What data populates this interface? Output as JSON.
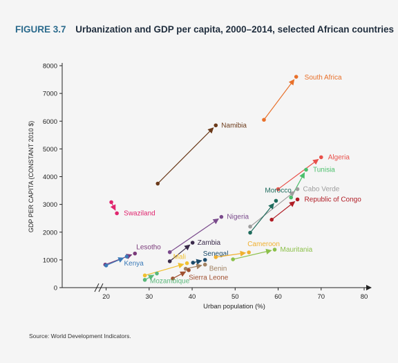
{
  "figure": {
    "number": "FIGURE 3.7",
    "title": "Urbanization and GDP per capita, 2000–2014, selected African countries",
    "source": "Source: World Development Indicators."
  },
  "chart_data": {
    "type": "scatter",
    "subtype": "arrow-scatter",
    "xlabel": "Urban population (%)",
    "ylabel": "GDP PER CAPITA (CONSTANT 2010 $)",
    "xlim": [
      10,
      80
    ],
    "ylim": [
      0,
      8000
    ],
    "xticks": [
      20,
      30,
      40,
      50,
      60,
      70,
      80
    ],
    "yticks": [
      0,
      1000,
      2000,
      3000,
      4000,
      5000,
      6000,
      7000,
      8000
    ],
    "axis_break_x": true,
    "grid": false,
    "legend": "none",
    "series": [
      {
        "name": "South Africa",
        "color": "#e8702a",
        "start": [
          56.7,
          6050
        ],
        "end": [
          64.2,
          7600
        ]
      },
      {
        "name": "Namibia",
        "color": "#6b3a1a",
        "start": [
          32.0,
          3750
        ],
        "end": [
          45.5,
          5850
        ]
      },
      {
        "name": "Algeria",
        "color": "#e8504a",
        "start": [
          60.0,
          3550
        ],
        "end": [
          70.0,
          4700
        ]
      },
      {
        "name": "Tunisia",
        "color": "#4bbf6b",
        "start": [
          63.0,
          3250
        ],
        "end": [
          66.5,
          4250
        ]
      },
      {
        "name": "Cabo Verde",
        "color": "#9e9e9e",
        "start": [
          53.5,
          2200
        ],
        "end": [
          64.5,
          3550
        ]
      },
      {
        "name": "Morocco",
        "color": "#1e6b5c",
        "start": [
          53.5,
          1980
        ],
        "end": [
          59.5,
          3130
        ]
      },
      {
        "name": "Republic of Congo",
        "color": "#b01c24",
        "start": [
          58.5,
          2450
        ],
        "end": [
          64.5,
          3180
        ]
      },
      {
        "name": "Swaziland",
        "color": "#e0256e",
        "start": [
          21.2,
          3080
        ],
        "end": [
          22.5,
          2680
        ]
      },
      {
        "name": "Nigeria",
        "color": "#7a4a8c",
        "start": [
          34.8,
          1280
        ],
        "end": [
          46.8,
          2550
        ]
      },
      {
        "name": "Zambia",
        "color": "#3a2a4a",
        "start": [
          34.8,
          950
        ],
        "end": [
          40.1,
          1620
        ]
      },
      {
        "name": "Lesotho",
        "color": "#7a3a7a",
        "start": [
          19.8,
          830
        ],
        "end": [
          26.7,
          1230
        ]
      },
      {
        "name": "Kenya",
        "color": "#3a7ab8",
        "start": [
          20.0,
          800
        ],
        "end": [
          24.8,
          1120
        ]
      },
      {
        "name": "Senegal",
        "color": "#1a4a6a",
        "start": [
          40.2,
          900
        ],
        "end": [
          43.0,
          1000
        ]
      },
      {
        "name": "Cameroon",
        "color": "#f0b030",
        "start": [
          45.5,
          1100
        ],
        "end": [
          53.2,
          1270
        ]
      },
      {
        "name": "Mauritania",
        "color": "#8cc04a",
        "start": [
          49.5,
          1020
        ],
        "end": [
          59.2,
          1370
        ]
      },
      {
        "name": "Mali",
        "color": "#f0c030",
        "start": [
          29.0,
          440
        ],
        "end": [
          38.8,
          880
        ]
      },
      {
        "name": "Benin",
        "color": "#a08060",
        "start": [
          38.5,
          680
        ],
        "end": [
          43.0,
          830
        ]
      },
      {
        "name": "Sierra Leone",
        "color": "#a05030",
        "start": [
          35.5,
          330
        ],
        "end": [
          39.2,
          630
        ]
      },
      {
        "name": "Mozambique",
        "color": "#5ab87a",
        "start": [
          29.0,
          280
        ],
        "end": [
          31.8,
          510
        ]
      }
    ]
  },
  "label_text": [
    "South Africa",
    "Namibia",
    "Algeria",
    "Tunisia",
    "Cabo Verde",
    "Morocco",
    "Republic of Congo",
    "Swaziland",
    "Nigeria",
    "Zambia",
    "Lesotho",
    "Kenya",
    "Senegal",
    "Cameroon",
    "Mauritania",
    "Mali",
    "Benin",
    "Sierra Leone",
    "Mozambique"
  ]
}
